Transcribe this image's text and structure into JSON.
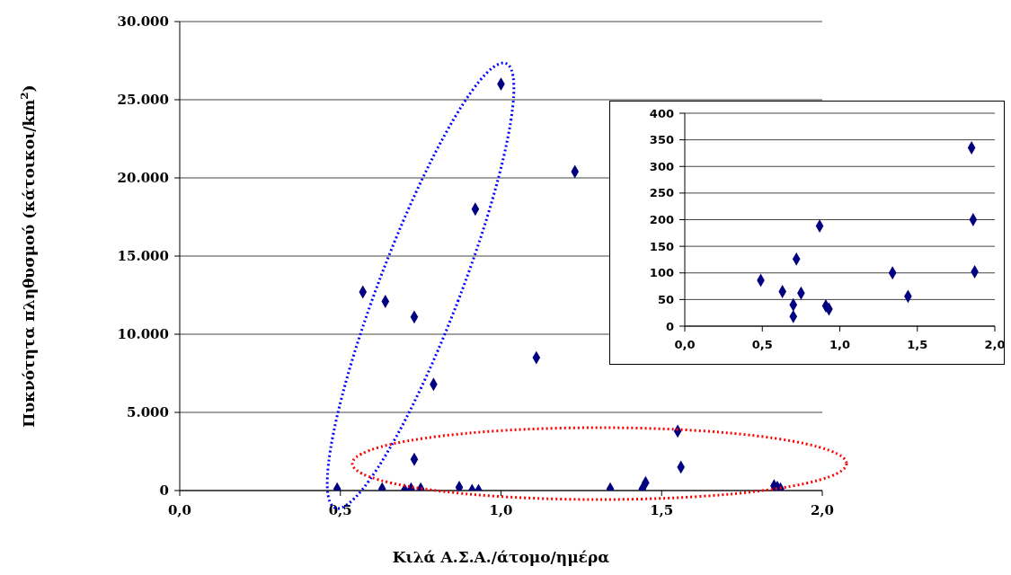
{
  "chart_data": [
    {
      "type": "scatter",
      "xlabel": "Κιλά Α.Σ.Α./άτομο/ημέρα",
      "ylabel": "Πυκνότητα πληθυσμού (κάτοικοι/km$^{2}$)",
      "marker": "diamond",
      "grid": "y",
      "xlim": [
        0,
        2
      ],
      "xticks": [
        {
          "value": 0,
          "label": "0,0"
        },
        {
          "value": 0.5,
          "label": "0,5"
        },
        {
          "value": 1,
          "label": "1,0"
        },
        {
          "value": 1.5,
          "label": "1,5"
        },
        {
          "value": 2,
          "label": "2,0"
        }
      ],
      "ylim": [
        0,
        30000
      ],
      "yticks": [
        0,
        {
          "value": 5000,
          "label": "5.000"
        },
        {
          "value": 10000,
          "label": "10.000"
        },
        {
          "value": 15000,
          "label": "15.000"
        },
        {
          "value": 20000,
          "label": "20.000"
        },
        {
          "value": 25000,
          "label": "25.000"
        },
        {
          "value": 30000,
          "label": "30.000"
        }
      ],
      "series": [
        {
          "color": "#000080",
          "x": [
            0.49,
            0.57,
            0.63,
            0.64,
            0.7,
            0.7,
            0.72,
            0.73,
            0.73,
            0.75,
            0.79,
            0.87,
            0.91,
            0.92,
            0.93,
            1.0,
            1.11,
            1.23,
            1.34,
            1.44,
            1.45,
            1.55,
            1.56,
            1.85,
            1.86,
            1.87
          ],
          "values": [
            100,
            12700,
            100,
            12100,
            0,
            0,
            100,
            11100,
            2000,
            100,
            6800,
            200,
            0,
            18000,
            0,
            26000,
            8500,
            20400,
            100,
            100,
            500,
            3800,
            1500,
            300,
            200,
            100
          ]
        }
      ]
    },
    {
      "type": "scatter",
      "marker": "diamond",
      "grid": "y",
      "xlim": [
        0,
        2
      ],
      "xticks": [
        {
          "value": 0,
          "label": "0,0"
        },
        {
          "value": 0.5,
          "label": "0,5"
        },
        {
          "value": 1,
          "label": "1,0"
        },
        {
          "value": 1.5,
          "label": "1,5"
        },
        {
          "value": 2,
          "label": "2,0"
        }
      ],
      "ylim": [
        0,
        400
      ],
      "yticks": [
        0,
        50,
        100,
        150,
        200,
        250,
        300,
        350,
        400
      ],
      "series": [
        {
          "color": "#000080",
          "x": [
            0.49,
            0.63,
            0.7,
            0.7,
            0.72,
            0.75,
            0.87,
            0.91,
            0.93,
            1.34,
            1.44,
            1.85,
            1.86,
            1.87
          ],
          "values": [
            86,
            65,
            40,
            18,
            126,
            62,
            188,
            38,
            32,
            100,
            56,
            335,
            200,
            102
          ]
        }
      ]
    }
  ]
}
